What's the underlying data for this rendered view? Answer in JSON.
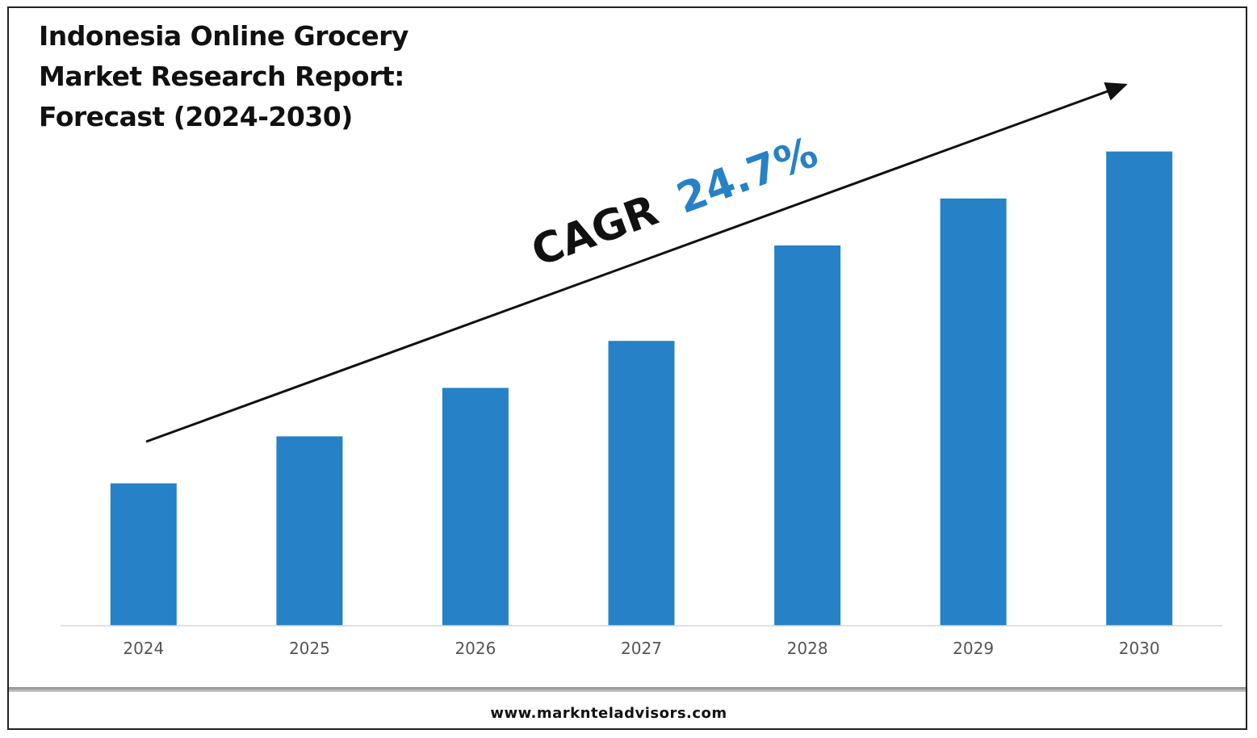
{
  "title_lines": [
    "Indonesia Online Grocery",
    "Market Research Report:",
    "Forecast (2024-2030)"
  ],
  "footer": {
    "website": "www.marknteladvisors.com"
  },
  "annotation": {
    "cagr_label": "CAGR",
    "cagr_value": "24.7%",
    "label_color": "#111111",
    "value_color": "#2781c6"
  },
  "chart_data": {
    "type": "bar",
    "title": "Indonesia Online Grocery Market Research Report: Forecast (2024-2030)",
    "categories": [
      "2024",
      "2025",
      "2026",
      "2027",
      "2028",
      "2029",
      "2030"
    ],
    "values": [
      1.0,
      1.33,
      1.67,
      2.0,
      2.67,
      3.0,
      3.33
    ],
    "value_units": "relative (no y-axis scale shown)",
    "ylim": [
      0,
      3.6
    ],
    "bar_color": "#2781c6",
    "grid": false,
    "legend": "none",
    "xlabel": "",
    "ylabel": ""
  }
}
